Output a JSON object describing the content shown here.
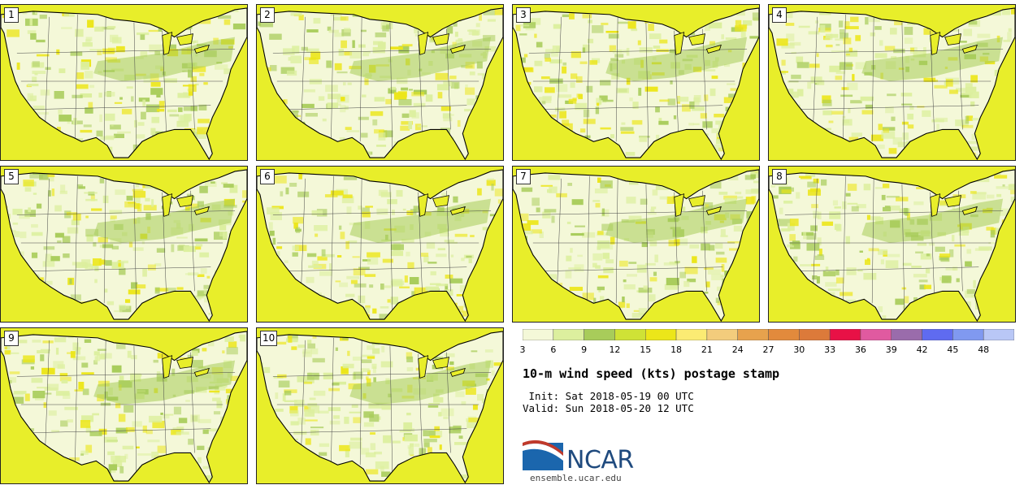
{
  "panels": [
    {
      "label": "1"
    },
    {
      "label": "2"
    },
    {
      "label": "3"
    },
    {
      "label": "4"
    },
    {
      "label": "5"
    },
    {
      "label": "6"
    },
    {
      "label": "7"
    },
    {
      "label": "8"
    },
    {
      "label": "9"
    },
    {
      "label": "10"
    }
  ],
  "colorbar": {
    "ticks": [
      "3",
      "6",
      "9",
      "12",
      "15",
      "18",
      "21",
      "24",
      "27",
      "30",
      "33",
      "36",
      "39",
      "42",
      "45",
      "48"
    ],
    "colors": [
      "#f4f8d8",
      "#dcef9e",
      "#a8cc5a",
      "#cfe236",
      "#ece619",
      "#fbeb73",
      "#f3cc7c",
      "#e7a24d",
      "#e28a3c",
      "#dc7a3a",
      "#e81146",
      "#e05aa0",
      "#9a6cab",
      "#5f6bf0",
      "#8099f0",
      "#b9c7f6"
    ]
  },
  "title": "10-m wind speed (kts) postage stamp",
  "init": " Init: Sat 2018-05-19 00 UTC",
  "valid": "Valid: Sun 2018-05-20 12 UTC",
  "logo_text": "NCAR",
  "site": "ensemble.ucar.edu",
  "map_colors": {
    "ocean": "#e8ee2a",
    "land_light": "#f4f8d8",
    "land_mid": "#dcef9e",
    "land_green": "#a8cc5a",
    "coast": "#000000",
    "state_line": "#444444"
  }
}
